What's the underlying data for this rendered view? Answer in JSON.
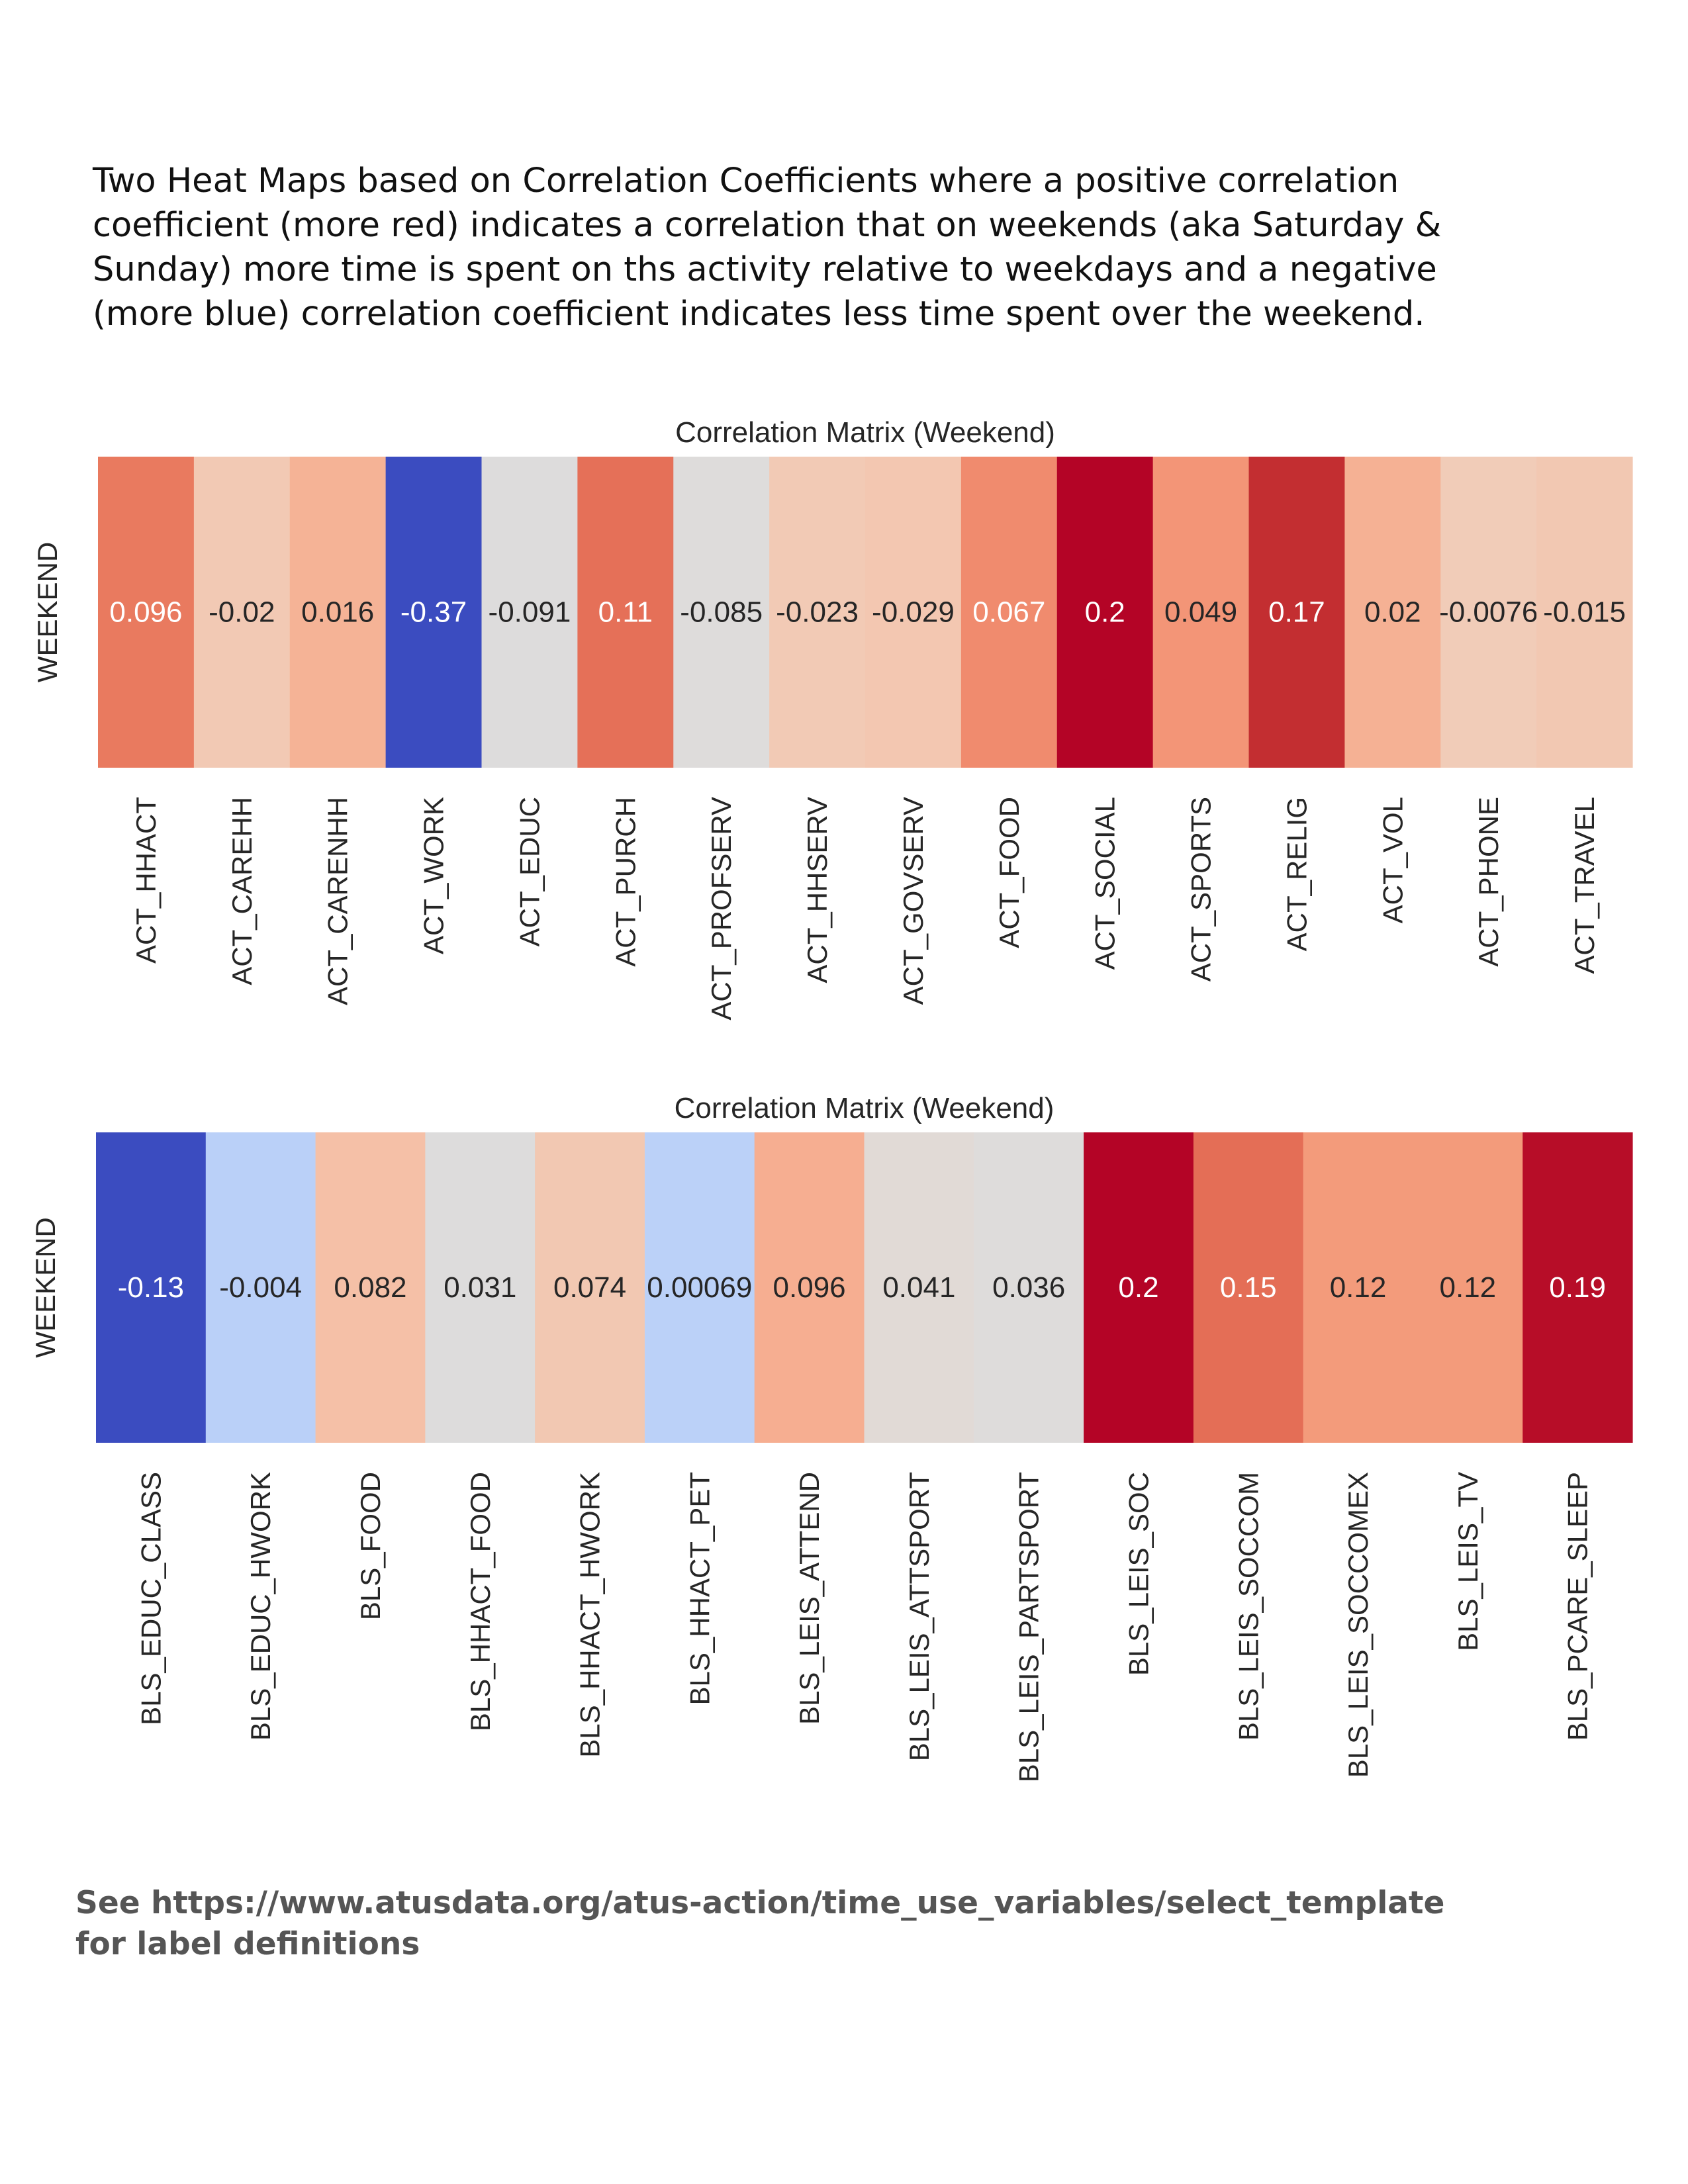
{
  "intro_text": "Two Heat Maps based on Correlation Coefficients where a positive correlation\ncoefficient (more red) indicates a correlation that on weekends (aka Saturday &\nSunday) more time is spent on ths activity relative to weekdays and a negative\n(more blue) correlation coefficient indicates less time spent over the weekend.",
  "footer_text": "See https://www.atusdata.org/atus-action/time_use_variables/select_template\nfor label definitions",
  "chart_data": [
    {
      "type": "heatmap",
      "title": "Correlation Matrix (Weekend)",
      "ylabel": "WEEKEND",
      "colormap": "coolwarm",
      "categories": [
        "ACT_HHACT",
        "ACT_CAREHH",
        "ACT_CARENHH",
        "ACT_WORK",
        "ACT_EDUC",
        "ACT_PURCH",
        "ACT_PROFSERV",
        "ACT_HHSERV",
        "ACT_GOVSERV",
        "ACT_FOOD",
        "ACT_SOCIAL",
        "ACT_SPORTS",
        "ACT_RELIG",
        "ACT_VOL",
        "ACT_PHONE",
        "ACT_TRAVEL"
      ],
      "values": [
        0.096,
        -0.02,
        0.016,
        -0.37,
        -0.091,
        0.11,
        -0.085,
        -0.023,
        -0.029,
        0.067,
        0.2,
        0.049,
        0.17,
        0.02,
        -0.0076,
        -0.015
      ],
      "value_labels": [
        "0.096",
        "-0.02",
        "0.016",
        "-0.37",
        "-0.091",
        "0.11",
        "-0.085",
        "-0.023",
        "-0.029",
        "0.067",
        "0.2",
        "0.049",
        "0.17",
        "0.02",
        "-0.0076",
        "-0.015"
      ],
      "cell_colors": [
        "#e97a5f",
        "#f2c9b4",
        "#f5b396",
        "#3b4cc0",
        "#dddcdc",
        "#e57058",
        "#dedcdb",
        "#f2cab5",
        "#f3c7b1",
        "#f08b6e",
        "#b40426",
        "#f39577",
        "#c32e31",
        "#f5b194",
        "#f1ccb8",
        "#f2c8b2"
      ],
      "label_colors": [
        "#ffffff",
        "#262626",
        "#262626",
        "#ffffff",
        "#262626",
        "#ffffff",
        "#262626",
        "#262626",
        "#262626",
        "#ffffff",
        "#ffffff",
        "#262626",
        "#ffffff",
        "#262626",
        "#262626",
        "#262626"
      ]
    },
    {
      "type": "heatmap",
      "title": "Correlation Matrix (Weekend)",
      "ylabel": "WEEKEND",
      "colormap": "coolwarm",
      "categories": [
        "BLS_EDUC_CLASS",
        "BLS_EDUC_HWORK",
        "BLS_FOOD",
        "BLS_HHACT_FOOD",
        "BLS_HHACT_HWORK",
        "BLS_HHACT_PET",
        "BLS_LEIS_ATTEND",
        "BLS_LEIS_ATTSPORT",
        "BLS_LEIS_PARTSPORT",
        "BLS_LEIS_SOC",
        "BLS_LEIS_SOCCOM",
        "BLS_LEIS_SOCCOMEX",
        "BLS_LEIS_TV",
        "BLS_PCARE_SLEEP"
      ],
      "values": [
        -0.13,
        -0.004,
        0.082,
        0.031,
        0.074,
        0.00069,
        0.096,
        0.041,
        0.036,
        0.2,
        0.15,
        0.12,
        0.12,
        0.19
      ],
      "value_labels": [
        "-0.13",
        "-0.004",
        "0.082",
        "0.031",
        "0.074",
        "0.00069",
        "0.096",
        "0.041",
        "0.036",
        "0.2",
        "0.15",
        "0.12",
        "0.12",
        "0.19"
      ],
      "cell_colors": [
        "#3b4cc0",
        "#bad0f8",
        "#f5c0a7",
        "#dddcdc",
        "#f2c8b2",
        "#bbd1f8",
        "#f6ae91",
        "#e1dad6",
        "#dedcdb",
        "#b40426",
        "#e46e56",
        "#f39b7b",
        "#f39b7b",
        "#b70d28"
      ],
      "label_colors": [
        "#ffffff",
        "#262626",
        "#262626",
        "#262626",
        "#262626",
        "#262626",
        "#262626",
        "#262626",
        "#262626",
        "#ffffff",
        "#ffffff",
        "#262626",
        "#262626",
        "#ffffff"
      ]
    }
  ]
}
